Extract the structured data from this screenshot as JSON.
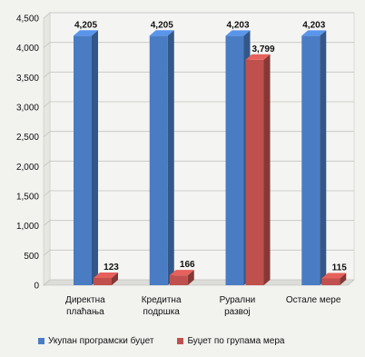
{
  "chart_data": {
    "type": "bar",
    "categories": [
      [
        "Директна",
        "плаћања"
      ],
      [
        "Кредитна",
        "подршка"
      ],
      [
        "Рурални",
        "развој"
      ],
      [
        "Остале мере"
      ]
    ],
    "series": [
      {
        "name": "Укупан програмски буџет",
        "color": "#4a7cc4",
        "values": [
          4205,
          4205,
          4203,
          4203
        ],
        "labels": [
          "4,205",
          "4,205",
          "4,203",
          "4,203"
        ]
      },
      {
        "name": "Буџет по групама мера",
        "color": "#c0504d",
        "values": [
          123,
          166,
          3799,
          115
        ],
        "labels": [
          "123",
          "166",
          "3,799",
          "115"
        ]
      }
    ],
    "ylim": [
      0,
      4500
    ],
    "yticks": [
      "0",
      "500",
      "1,000",
      "1,500",
      "2,000",
      "2,500",
      "3,000",
      "3,500",
      "4,000",
      "4,500"
    ],
    "grid": true,
    "legend_position": "bottom"
  }
}
